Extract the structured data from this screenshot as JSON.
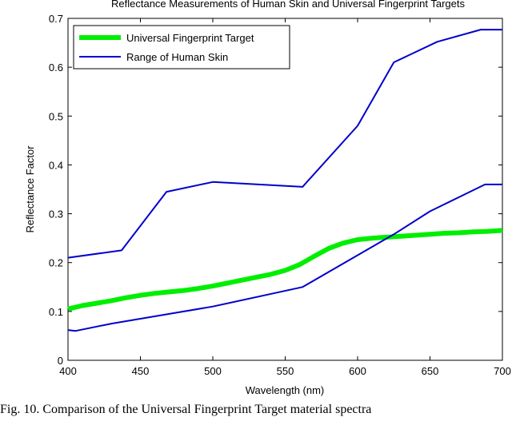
{
  "caption": "Fig. 10. Comparison of the Universal Fingerprint Target material spectra",
  "chart_data": {
    "type": "line",
    "title": "Reflectance Measurements of Human Skin and Universal Fingerprint Targets",
    "xlabel": "Wavelength (nm)",
    "ylabel": "Reflectance Factor",
    "xlim": [
      400,
      700
    ],
    "ylim": [
      0,
      0.7
    ],
    "xticks": [
      400,
      450,
      500,
      550,
      600,
      650,
      700
    ],
    "yticks": [
      0,
      0.1,
      0.2,
      0.3,
      0.4,
      0.5,
      0.6,
      0.7
    ],
    "xtick_labels": [
      "400",
      "450",
      "500",
      "550",
      "600",
      "650",
      "700"
    ],
    "ytick_labels": [
      "0",
      "0.1",
      "0.2",
      "0.3",
      "0.4",
      "0.5",
      "0.6",
      "0.7"
    ],
    "grid": false,
    "legend_position": "top-left",
    "series": [
      {
        "name": "Universal Fingerprint Target",
        "color": "#00ee00",
        "width": "thick",
        "x": [
          400,
          410,
          420,
          430,
          440,
          450,
          460,
          470,
          480,
          490,
          500,
          510,
          520,
          530,
          540,
          550,
          560,
          570,
          580,
          590,
          600,
          610,
          620,
          630,
          640,
          650,
          660,
          670,
          680,
          690,
          700
        ],
        "y": [
          0.105,
          0.112,
          0.117,
          0.122,
          0.128,
          0.133,
          0.137,
          0.14,
          0.143,
          0.147,
          0.152,
          0.158,
          0.164,
          0.17,
          0.176,
          0.184,
          0.196,
          0.213,
          0.229,
          0.24,
          0.247,
          0.25,
          0.252,
          0.254,
          0.256,
          0.258,
          0.26,
          0.261,
          0.263,
          0.264,
          0.266
        ]
      },
      {
        "name": "Range of Human Skin",
        "color": "#0000cc",
        "width": "normal",
        "x": [
          400,
          437,
          468,
          500,
          562,
          600,
          625,
          655,
          685,
          700
        ],
        "y": [
          0.21,
          0.225,
          0.345,
          0.365,
          0.355,
          0.48,
          0.61,
          0.652,
          0.677,
          0.677
        ]
      },
      {
        "name": "",
        "color": "#0000cc",
        "width": "normal",
        "x": [
          400,
          405,
          430,
          470,
          500,
          562,
          600,
          625,
          650,
          688,
          700
        ],
        "y": [
          0.062,
          0.06,
          0.075,
          0.095,
          0.11,
          0.15,
          0.215,
          0.258,
          0.305,
          0.36,
          0.36
        ]
      }
    ]
  }
}
